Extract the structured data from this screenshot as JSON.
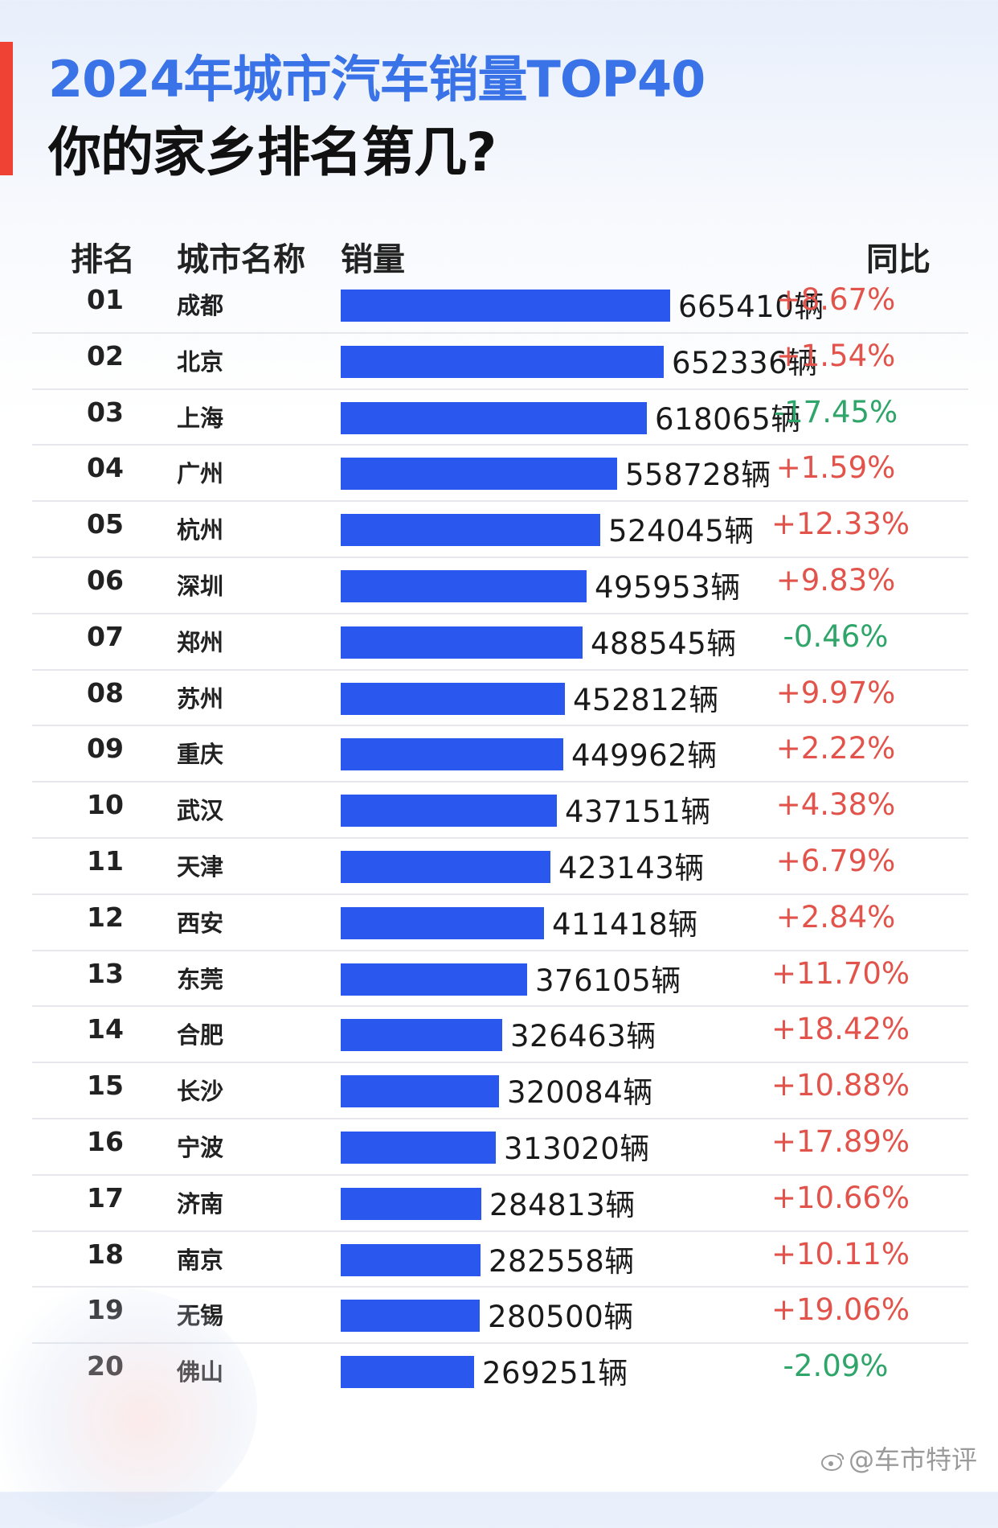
{
  "title_line1": "2024年城市汽车销量TOP40",
  "title_line2": "你的家乡排名第几?",
  "headers": {
    "rank": "排名",
    "city": "城市名称",
    "sales": "销量",
    "yoy": "同比"
  },
  "watermark": "@车市特评",
  "colors": {
    "bar": "#2a58ef",
    "positive": "#e2544b",
    "negative": "#2fa56a",
    "title_blue": "#3a73e8",
    "accent": "#f04135"
  },
  "chart_data": {
    "type": "bar",
    "orientation": "horizontal",
    "unit": "辆",
    "xlim": [
      0,
      665410
    ],
    "rows": [
      {
        "rank": "01",
        "city": "成都",
        "value": 665410,
        "label": "665410辆",
        "yoy": "+8.67%"
      },
      {
        "rank": "02",
        "city": "北京",
        "value": 652336,
        "label": "652336辆",
        "yoy": "+1.54%"
      },
      {
        "rank": "03",
        "city": "上海",
        "value": 618065,
        "label": "618065辆",
        "yoy": "-17.45%"
      },
      {
        "rank": "04",
        "city": "广州",
        "value": 558728,
        "label": "558728辆",
        "yoy": "+1.59%"
      },
      {
        "rank": "05",
        "city": "杭州",
        "value": 524045,
        "label": "524045辆",
        "yoy": "+12.33%"
      },
      {
        "rank": "06",
        "city": "深圳",
        "value": 495953,
        "label": "495953辆",
        "yoy": "+9.83%"
      },
      {
        "rank": "07",
        "city": "郑州",
        "value": 488545,
        "label": "488545辆",
        "yoy": "-0.46%"
      },
      {
        "rank": "08",
        "city": "苏州",
        "value": 452812,
        "label": "452812辆",
        "yoy": "+9.97%"
      },
      {
        "rank": "09",
        "city": "重庆",
        "value": 449962,
        "label": "449962辆",
        "yoy": "+2.22%"
      },
      {
        "rank": "10",
        "city": "武汉",
        "value": 437151,
        "label": "437151辆",
        "yoy": "+4.38%"
      },
      {
        "rank": "11",
        "city": "天津",
        "value": 423143,
        "label": "423143辆",
        "yoy": "+6.79%"
      },
      {
        "rank": "12",
        "city": "西安",
        "value": 411418,
        "label": "411418辆",
        "yoy": "+2.84%"
      },
      {
        "rank": "13",
        "city": "东莞",
        "value": 376105,
        "label": "376105辆",
        "yoy": "+11.70%"
      },
      {
        "rank": "14",
        "city": "合肥",
        "value": 326463,
        "label": "326463辆",
        "yoy": "+18.42%"
      },
      {
        "rank": "15",
        "city": "长沙",
        "value": 320084,
        "label": "320084辆",
        "yoy": "+10.88%"
      },
      {
        "rank": "16",
        "city": "宁波",
        "value": 313020,
        "label": "313020辆",
        "yoy": "+17.89%"
      },
      {
        "rank": "17",
        "city": "济南",
        "value": 284813,
        "label": "284813辆",
        "yoy": "+10.66%"
      },
      {
        "rank": "18",
        "city": "南京",
        "value": 282558,
        "label": "282558辆",
        "yoy": "+10.11%"
      },
      {
        "rank": "19",
        "city": "无锡",
        "value": 280500,
        "label": "280500辆",
        "yoy": "+19.06%"
      },
      {
        "rank": "20",
        "city": "佛山",
        "value": 269251,
        "label": "269251辆",
        "yoy": "-2.09%"
      }
    ]
  }
}
